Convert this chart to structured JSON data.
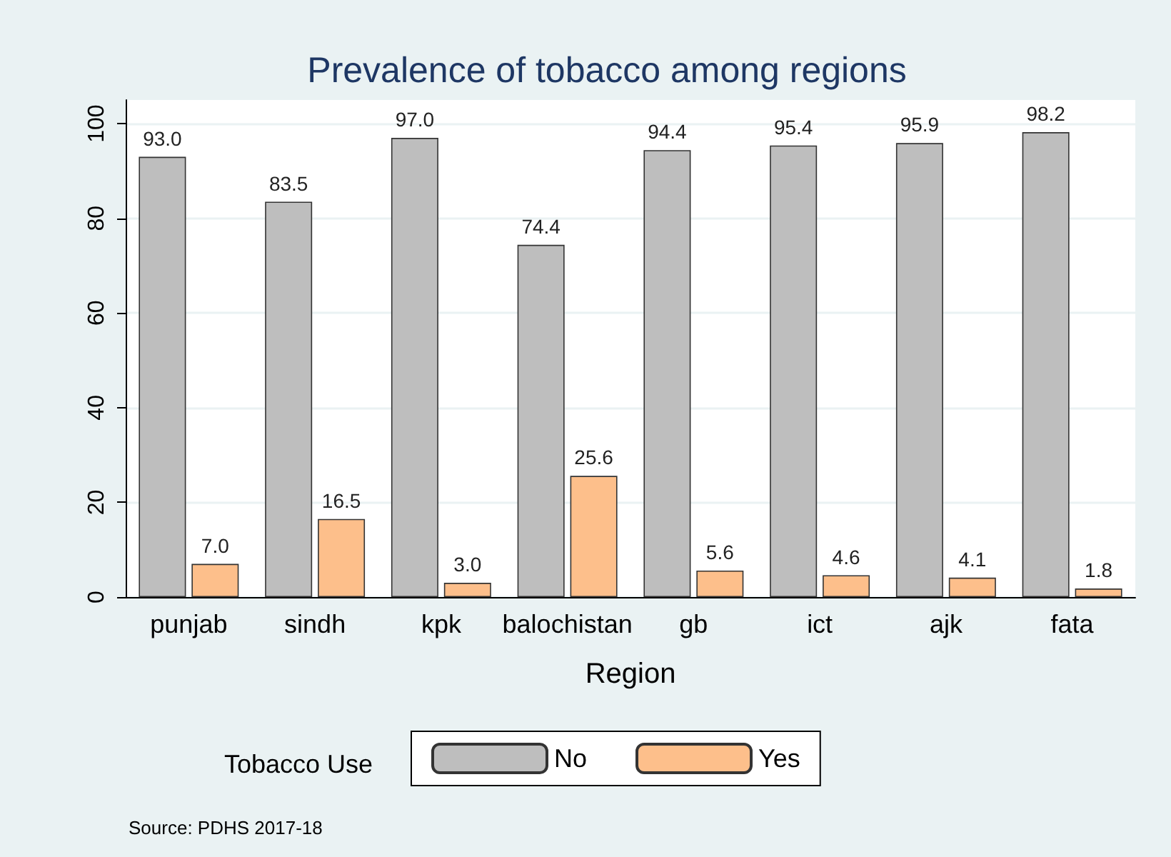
{
  "chart_data": {
    "type": "bar",
    "title": "Prevalence of tobacco among regions",
    "xlabel": "Region",
    "legend_title": "Tobacco Use",
    "annotations": [
      "Source: PDHS 2017-18"
    ],
    "categories": [
      "punjab",
      "sindh",
      "kpk",
      "balochistan",
      "gb",
      "ict",
      "ajk",
      "fata"
    ],
    "series": [
      {
        "name": "No",
        "color": "#bebebe",
        "values": [
          93.0,
          83.5,
          97.0,
          74.4,
          94.4,
          95.4,
          95.9,
          98.2
        ],
        "value_labels": [
          "93.0",
          "83.5",
          "97.0",
          "74.4",
          "94.4",
          "95.4",
          "95.9",
          "98.2"
        ]
      },
      {
        "name": "Yes",
        "color": "#fdbf8b",
        "values": [
          7.0,
          16.5,
          3.0,
          25.6,
          5.6,
          4.6,
          4.1,
          1.8
        ],
        "value_labels": [
          "7.0",
          "16.5",
          "3.0",
          "25.6",
          "5.6",
          "4.6",
          "4.1",
          "1.8"
        ]
      }
    ],
    "ylim": [
      0,
      105
    ],
    "yticks": [
      0,
      20,
      40,
      60,
      80,
      100
    ],
    "grid": "y",
    "legend": "bottom"
  }
}
